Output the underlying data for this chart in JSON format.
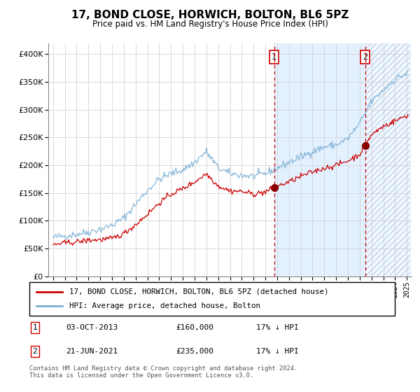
{
  "title": "17, BOND CLOSE, HORWICH, BOLTON, BL6 5PZ",
  "subtitle": "Price paid vs. HM Land Registry's House Price Index (HPI)",
  "legend_line1": "17, BOND CLOSE, HORWICH, BOLTON, BL6 5PZ (detached house)",
  "legend_line2": "HPI: Average price, detached house, Bolton",
  "footer": "Contains HM Land Registry data © Crown copyright and database right 2024.\nThis data is licensed under the Open Government Licence v3.0.",
  "marker1_date": "03-OCT-2013",
  "marker1_price": 160000,
  "marker1_label": "17% ↓ HPI",
  "marker2_date": "21-JUN-2021",
  "marker2_price": 235000,
  "marker2_label": "17% ↓ HPI",
  "hpi_color": "#7bafd4",
  "price_color": "#cc0000",
  "marker_color": "#8b0000",
  "background_shaded": "#ddeeff",
  "hatch_color": "#c0d4e8",
  "ylim": [
    0,
    420000
  ],
  "yticks": [
    0,
    50000,
    100000,
    150000,
    200000,
    250000,
    300000,
    350000,
    400000
  ],
  "x_start_year": 1995,
  "x_end_year": 2025,
  "marker1_x": 2013.75,
  "marker2_x": 2021.47,
  "hpi_keypoints": {
    "1995": 70000,
    "1996": 73000,
    "1997": 76000,
    "1998": 80000,
    "1999": 85000,
    "2000": 92000,
    "2001": 105000,
    "2002": 130000,
    "2003": 155000,
    "2004": 175000,
    "2005": 185000,
    "2006": 192000,
    "2007": 205000,
    "2008": 225000,
    "2009": 195000,
    "2010": 185000,
    "2011": 182000,
    "2012": 180000,
    "2013": 185000,
    "2014": 195000,
    "2015": 205000,
    "2016": 215000,
    "2017": 225000,
    "2018": 233000,
    "2019": 237000,
    "2020": 248000,
    "2021": 275000,
    "2022": 315000,
    "2023": 335000,
    "2024": 355000,
    "2025": 365000
  },
  "price_keypoints": {
    "1995": 57000,
    "1996": 60000,
    "1997": 62000,
    "1998": 65000,
    "1999": 66000,
    "2000": 68000,
    "2001": 77000,
    "2002": 93000,
    "2003": 112000,
    "2004": 132000,
    "2005": 148000,
    "2006": 158000,
    "2007": 170000,
    "2008": 185000,
    "2009": 163000,
    "2010": 154000,
    "2011": 153000,
    "2012": 148000,
    "2013": 152000,
    "2014": 162000,
    "2015": 170000,
    "2016": 180000,
    "2017": 188000,
    "2018": 195000,
    "2019": 200000,
    "2020": 208000,
    "2021": 220000,
    "2022": 255000,
    "2023": 270000,
    "2024": 280000,
    "2025": 290000
  }
}
